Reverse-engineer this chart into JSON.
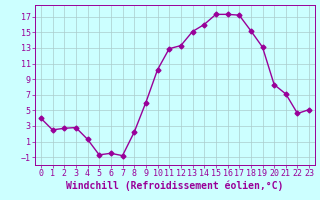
{
  "x": [
    0,
    1,
    2,
    3,
    4,
    5,
    6,
    7,
    8,
    9,
    10,
    11,
    12,
    13,
    14,
    15,
    16,
    17,
    18,
    19,
    20,
    21,
    22,
    23
  ],
  "y": [
    4.0,
    2.5,
    2.7,
    2.8,
    1.3,
    -0.7,
    -0.5,
    -0.8,
    2.2,
    6.0,
    10.2,
    12.9,
    13.3,
    15.1,
    16.0,
    17.3,
    17.3,
    17.2,
    15.2,
    13.1,
    8.3,
    7.1,
    4.6,
    5.1
  ],
  "line_color": "#990099",
  "marker": "D",
  "markersize": 2.5,
  "linewidth": 1.0,
  "bg_color": "#ccffff",
  "grid_color": "#aacccc",
  "xlabel": "Windchill (Refroidissement éolien,°C)",
  "ylabel": "",
  "xlim": [
    -0.5,
    23.5
  ],
  "ylim": [
    -2,
    18.5
  ],
  "yticks": [
    -1,
    1,
    3,
    5,
    7,
    9,
    11,
    13,
    15,
    17
  ],
  "xticks": [
    0,
    1,
    2,
    3,
    4,
    5,
    6,
    7,
    8,
    9,
    10,
    11,
    12,
    13,
    14,
    15,
    16,
    17,
    18,
    19,
    20,
    21,
    22,
    23
  ],
  "tick_color": "#990099",
  "label_color": "#990099",
  "axis_color": "#990099",
  "xlabel_fontsize": 7.0,
  "tick_fontsize": 6.0
}
